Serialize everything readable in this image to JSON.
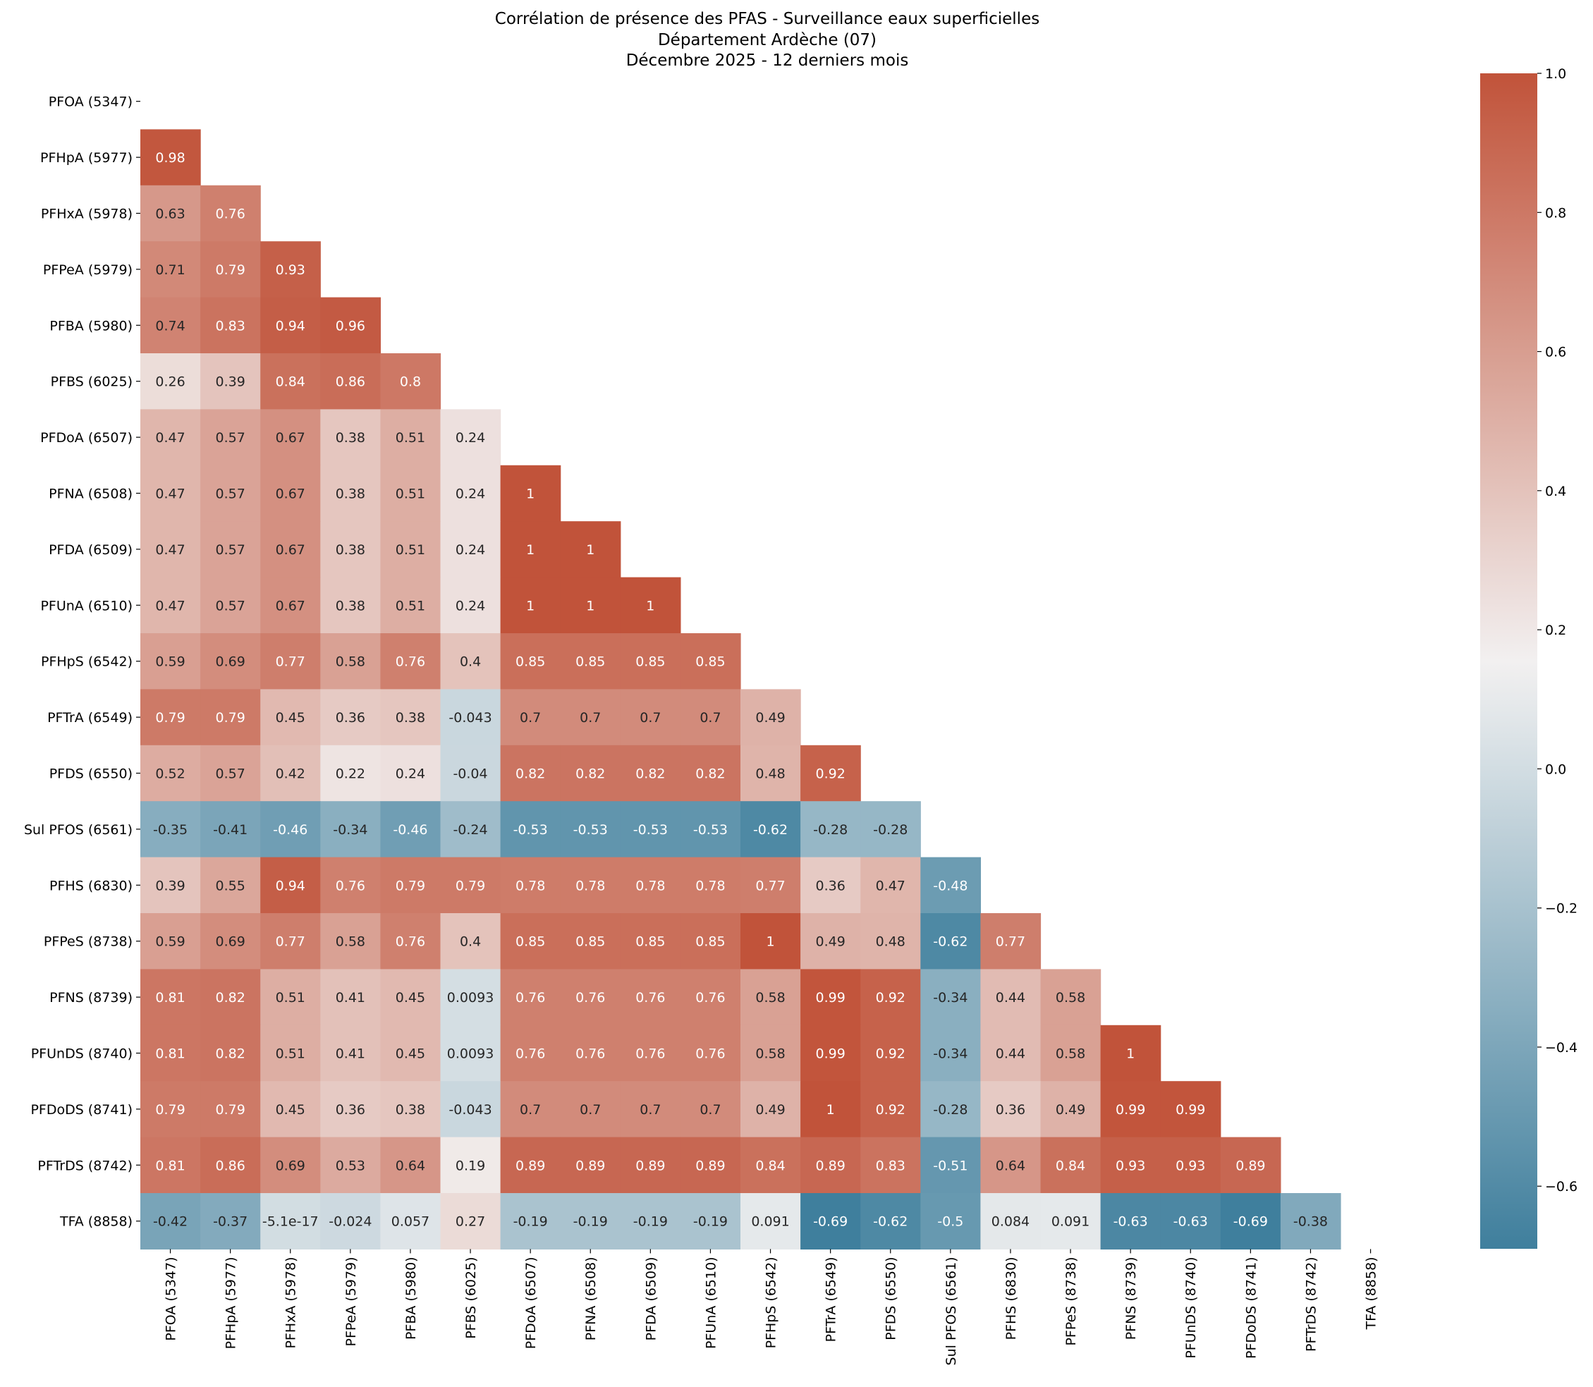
{
  "chart_data": {
    "type": "heatmap",
    "title": "Corrélation de présence des PFAS - Surveillance eaux superficielles",
    "subtitle_lines": [
      "Département Ardèche (07)",
      "Décembre 2025 - 12 derniers mois"
    ],
    "labels": [
      "PFOA (5347)",
      "PFHpA (5977)",
      "PFHxA (5978)",
      "PFPeA (5979)",
      "PFBA (5980)",
      "PFBS (6025)",
      "PFDoA (6507)",
      "PFNA (6508)",
      "PFDA (6509)",
      "PFUnA (6510)",
      "PFHpS (6542)",
      "PFTrA (6549)",
      "PFDS (6550)",
      "Sul PFOS (6561)",
      "PFHS (6830)",
      "PFPeS (8738)",
      "PFNS (8739)",
      "PFUnDS (8740)",
      "PFDoDS (8741)",
      "PFTrDS (8742)",
      "TFA (8858)"
    ],
    "mask": "upper-triangle-including-diagonal",
    "lower_triangle": [
      [],
      [
        "0.98"
      ],
      [
        "0.63",
        "0.76"
      ],
      [
        "0.71",
        "0.79",
        "0.93"
      ],
      [
        "0.74",
        "0.83",
        "0.94",
        "0.96"
      ],
      [
        "0.26",
        "0.39",
        "0.84",
        "0.86",
        "0.8"
      ],
      [
        "0.47",
        "0.57",
        "0.67",
        "0.38",
        "0.51",
        "0.24"
      ],
      [
        "0.47",
        "0.57",
        "0.67",
        "0.38",
        "0.51",
        "0.24",
        "1"
      ],
      [
        "0.47",
        "0.57",
        "0.67",
        "0.38",
        "0.51",
        "0.24",
        "1",
        "1"
      ],
      [
        "0.47",
        "0.57",
        "0.67",
        "0.38",
        "0.51",
        "0.24",
        "1",
        "1",
        "1"
      ],
      [
        "0.59",
        "0.69",
        "0.77",
        "0.58",
        "0.76",
        "0.4",
        "0.85",
        "0.85",
        "0.85",
        "0.85"
      ],
      [
        "0.79",
        "0.79",
        "0.45",
        "0.36",
        "0.38",
        "-0.043",
        "0.7",
        "0.7",
        "0.7",
        "0.7",
        "0.49"
      ],
      [
        "0.52",
        "0.57",
        "0.42",
        "0.22",
        "0.24",
        "-0.04",
        "0.82",
        "0.82",
        "0.82",
        "0.82",
        "0.48",
        "0.92"
      ],
      [
        "-0.35",
        "-0.41",
        "-0.46",
        "-0.34",
        "-0.46",
        "-0.24",
        "-0.53",
        "-0.53",
        "-0.53",
        "-0.53",
        "-0.62",
        "-0.28",
        "-0.28"
      ],
      [
        "0.39",
        "0.55",
        "0.94",
        "0.76",
        "0.79",
        "0.79",
        "0.78",
        "0.78",
        "0.78",
        "0.78",
        "0.77",
        "0.36",
        "0.47",
        "-0.48"
      ],
      [
        "0.59",
        "0.69",
        "0.77",
        "0.58",
        "0.76",
        "0.4",
        "0.85",
        "0.85",
        "0.85",
        "0.85",
        "1",
        "0.49",
        "0.48",
        "-0.62",
        "0.77"
      ],
      [
        "0.81",
        "0.82",
        "0.51",
        "0.41",
        "0.45",
        "0.0093",
        "0.76",
        "0.76",
        "0.76",
        "0.76",
        "0.58",
        "0.99",
        "0.92",
        "-0.34",
        "0.44",
        "0.58"
      ],
      [
        "0.81",
        "0.82",
        "0.51",
        "0.41",
        "0.45",
        "0.0093",
        "0.76",
        "0.76",
        "0.76",
        "0.76",
        "0.58",
        "0.99",
        "0.92",
        "-0.34",
        "0.44",
        "0.58",
        "1"
      ],
      [
        "0.79",
        "0.79",
        "0.45",
        "0.36",
        "0.38",
        "-0.043",
        "0.7",
        "0.7",
        "0.7",
        "0.7",
        "0.49",
        "1",
        "0.92",
        "-0.28",
        "0.36",
        "0.49",
        "0.99",
        "0.99"
      ],
      [
        "0.81",
        "0.86",
        "0.69",
        "0.53",
        "0.64",
        "0.19",
        "0.89",
        "0.89",
        "0.89",
        "0.89",
        "0.84",
        "0.89",
        "0.83",
        "-0.51",
        "0.64",
        "0.84",
        "0.93",
        "0.93",
        "0.89"
      ],
      [
        "-0.42",
        "-0.37",
        "-5.1e-17",
        "-0.024",
        "0.057",
        "0.27",
        "-0.19",
        "-0.19",
        "-0.19",
        "-0.19",
        "0.091",
        "-0.69",
        "-0.62",
        "-0.5",
        "0.084",
        "0.091",
        "-0.63",
        "-0.63",
        "-0.69",
        "-0.38"
      ]
    ],
    "colorbar": {
      "range": [
        -0.69,
        1.0
      ],
      "ticks": [
        1.0,
        0.8,
        0.6,
        0.4,
        0.2,
        0.0,
        -0.2,
        -0.4,
        -0.6
      ],
      "tick_labels": [
        "1.0",
        "0.8",
        "0.6",
        "0.4",
        "0.2",
        "0.0",
        "−0.2",
        "−0.4",
        "−0.6"
      ]
    },
    "colors": {
      "low": "#3f7f9d",
      "mid": "#f2f1f1",
      "high": "#c1533a",
      "text_dark": "#262626",
      "text_light": "#ffffff"
    }
  }
}
